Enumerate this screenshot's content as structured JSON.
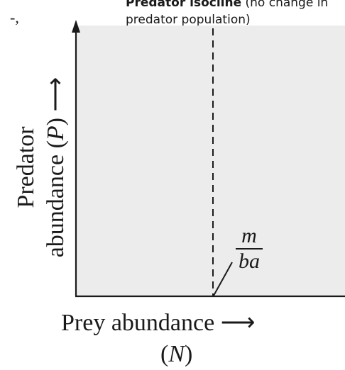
{
  "corner_fragment": "-,",
  "annotation": {
    "bold_text": "Predator isocline",
    "normal_text": " (no change in",
    "line2": "predator population)"
  },
  "y_axis": {
    "line1": "Predator",
    "line2_prefix": "abundance (",
    "line2_var": "P",
    "line2_suffix": ")",
    "arrow": "⟶"
  },
  "x_axis": {
    "line1_text": "Prey abundance",
    "arrow": "⟶",
    "line2_prefix": "(",
    "line2_var": "N",
    "line2_suffix": ")"
  },
  "isocline_label": {
    "numerator": "m",
    "denominator": "ba"
  },
  "colors": {
    "plot_background": "#ececec",
    "axis": "#1a1a1a",
    "isocline": "#1a1a1a"
  }
}
